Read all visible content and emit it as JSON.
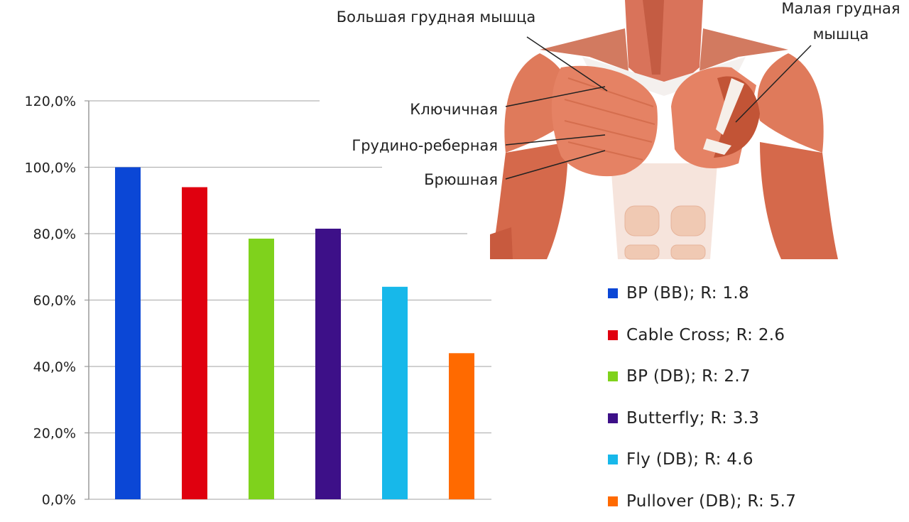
{
  "chart_data": {
    "type": "bar",
    "categories": [
      "BP (BB); R: 1.8",
      "Cable Cross; R: 2.6",
      "BP (DB); R: 2.7",
      "Butterfly; R: 3.3",
      "Fly (DB); R: 4.6",
      "Pullover (DB); R: 5.7"
    ],
    "values": [
      100,
      94,
      78.5,
      81.5,
      64,
      44
    ],
    "colors": [
      "#0b47d6",
      "#e0000f",
      "#7fd21c",
      "#3d1088",
      "#17b8ea",
      "#ff6a00"
    ],
    "y_ticks": [
      "0,0%",
      "20,0%",
      "40,0%",
      "60,0%",
      "80,0%",
      "100,0%",
      "120,0%"
    ],
    "ylim": [
      0,
      120
    ],
    "grid": true,
    "legend_placement": "bottom-right"
  },
  "anatomy": {
    "labels": {
      "pectoralis_major": "Большая грудная мышца",
      "pectoralis_minor_line1": "Малая грудная",
      "pectoralis_minor_line2": "мышца",
      "clavicular": "Ключичная",
      "sternocostal": "Грудино-реберная",
      "abdominal": "Брюшная"
    }
  }
}
